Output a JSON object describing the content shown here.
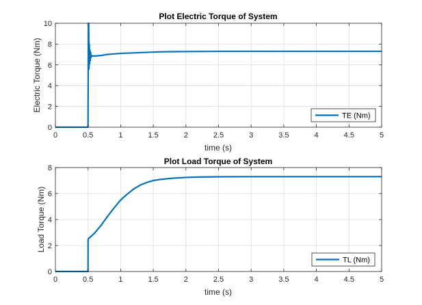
{
  "chart_data": [
    {
      "type": "line",
      "title": "Plot Electric Torque of System",
      "xlabel": "time (s)",
      "ylabel": "Electric Torque (Nm)",
      "xlim": [
        0,
        5
      ],
      "ylim": [
        0,
        10
      ],
      "xticks": [
        "0",
        "0.5",
        "1",
        "1.5",
        "2",
        "2.5",
        "3",
        "3.5",
        "4",
        "4.5",
        "5"
      ],
      "yticks": [
        "0",
        "2",
        "4",
        "6",
        "8",
        "10"
      ],
      "grid": true,
      "legend": "bottom-right",
      "color": "#0072BD",
      "series": [
        {
          "name": "TE (Nm)",
          "x": [
            0,
            0.49,
            0.5,
            0.505,
            0.51,
            0.515,
            0.52,
            0.525,
            0.53,
            0.535,
            0.54,
            0.545,
            0.55,
            0.56,
            0.6,
            0.7,
            0.8,
            0.9,
            1.0,
            1.2,
            1.4,
            1.6,
            1.8,
            2.0,
            2.5,
            3.0,
            3.5,
            4.0,
            4.5,
            5.0
          ],
          "y": [
            0,
            0,
            0,
            10,
            10,
            5.6,
            8.0,
            6.1,
            7.4,
            6.4,
            7.2,
            6.7,
            6.9,
            6.85,
            6.85,
            6.9,
            7.0,
            7.05,
            7.1,
            7.15,
            7.2,
            7.25,
            7.27,
            7.28,
            7.3,
            7.3,
            7.3,
            7.3,
            7.3,
            7.3
          ]
        }
      ]
    },
    {
      "type": "line",
      "title": "Plot Load Torque of System",
      "xlabel": "time (s)",
      "ylabel": "Load Torque (Nm)",
      "xlim": [
        0,
        5
      ],
      "ylim": [
        0,
        8
      ],
      "xticks": [
        "0",
        "0.5",
        "1",
        "1.5",
        "2",
        "2.5",
        "3",
        "3.5",
        "4",
        "4.5",
        "5"
      ],
      "yticks": [
        "0",
        "2",
        "4",
        "6",
        "8"
      ],
      "grid": true,
      "legend": "bottom-right",
      "color": "#0072BD",
      "series": [
        {
          "name": "TL (Nm)",
          "x": [
            0,
            0.49,
            0.5,
            0.501,
            0.6,
            0.7,
            0.8,
            0.9,
            1.0,
            1.1,
            1.2,
            1.3,
            1.4,
            1.5,
            1.6,
            1.8,
            2.0,
            2.2,
            2.5,
            3.0,
            3.5,
            4.0,
            4.5,
            5.0
          ],
          "y": [
            0,
            0,
            0,
            2.5,
            2.95,
            3.55,
            4.25,
            4.9,
            5.5,
            5.95,
            6.35,
            6.65,
            6.85,
            7.0,
            7.08,
            7.18,
            7.24,
            7.27,
            7.29,
            7.3,
            7.3,
            7.3,
            7.3,
            7.3
          ]
        }
      ]
    }
  ]
}
